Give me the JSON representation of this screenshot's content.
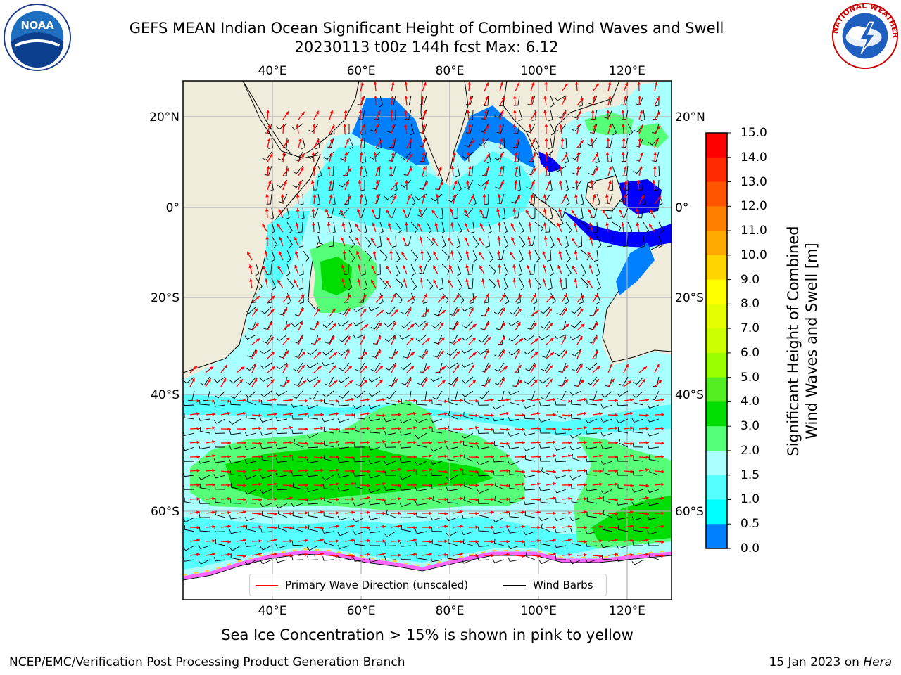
{
  "title": {
    "line1": "GEFS MEAN Indian Ocean Significant Height of Combined Wind Waves and Swell",
    "line2": "20230113 t00z 144h fcst   Max: 6.12"
  },
  "logos": {
    "left": {
      "icon": "noaa-logo",
      "text": "NOAA",
      "ring_text": "NATIONAL OCEANIC AND ATMOSPHERIC ADMINISTRATION · U.S. DEPARTMENT OF COMMERCE"
    },
    "right": {
      "icon": "nws-logo",
      "ring_text": "NATIONAL WEATHER SERVICE"
    }
  },
  "map": {
    "lon_range": [
      20,
      130
    ],
    "lat_range": [
      -75,
      28
    ],
    "lon_ticks": [
      "40°E",
      "60°E",
      "80°E",
      "100°E",
      "120°E"
    ],
    "lat_ticks": [
      "20°N",
      "0°",
      "20°S",
      "40°S",
      "60°S"
    ],
    "grid": true,
    "land_color": "#efecdc",
    "ocean_color": "#aaffff"
  },
  "legend": {
    "items": [
      {
        "label": "Primary Wave Direction (unscaled)",
        "color": "#ff0000"
      },
      {
        "label": "Wind Barbs",
        "color": "#000000"
      }
    ],
    "placement": "bottom-center"
  },
  "colorbar": {
    "label": "Significant Height of Combined Wind Waves and Swell [m]",
    "label_line1": "Significant Height of Combined",
    "label_line2": "Wind Waves and Swell [m]",
    "ticks": [
      "15.0",
      "14.0",
      "13.0",
      "12.0",
      "11.0",
      "10.0",
      "9.0",
      "8.0",
      "7.0",
      "6.0",
      "5.0",
      "4.0",
      "3.0",
      "2.0",
      "1.5",
      "1.0",
      "0.5",
      "0.0"
    ],
    "colors": [
      "#ff0000",
      "#ff2a00",
      "#ff5500",
      "#ff8000",
      "#ffaa00",
      "#ffd500",
      "#ffff00",
      "#e5ff00",
      "#ccff00",
      "#99ff00",
      "#55ee22",
      "#00dd00",
      "#55ff77",
      "#aaffff",
      "#55ffff",
      "#00ffff",
      "#0080ff",
      "#0000ff"
    ]
  },
  "ice_note": "Sea Ice Concentration > 15% is shown in pink to yellow",
  "footer": {
    "left": "NCEP/EMC/Verification Post Processing Product Generation Branch",
    "right_date": "15 Jan 2023 on",
    "right_host": "Hera"
  }
}
